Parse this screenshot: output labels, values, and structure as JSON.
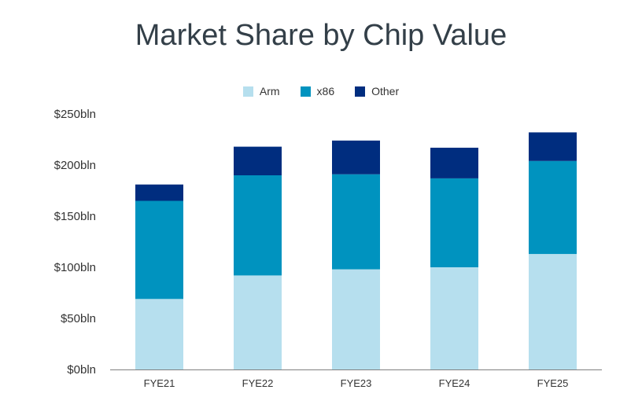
{
  "chart_data": {
    "type": "bar",
    "stacked": true,
    "title": "Market Share by Chip Value",
    "xlabel": "",
    "ylabel": "",
    "categories": [
      "FYE21",
      "FYE22",
      "FYE23",
      "FYE24",
      "FYE25"
    ],
    "series": [
      {
        "name": "Arm",
        "color": "#b6dfee",
        "values": [
          69,
          92,
          98,
          100,
          113
        ]
      },
      {
        "name": "x86",
        "color": "#0093bf",
        "values": [
          96,
          98,
          93,
          87,
          91
        ]
      },
      {
        "name": "Other",
        "color": "#002d7f",
        "values": [
          16,
          28,
          33,
          30,
          28
        ]
      }
    ],
    "ylim": [
      0,
      250
    ],
    "yticks": [
      0,
      50,
      100,
      150,
      200,
      250
    ],
    "ytick_labels": [
      "$0bln",
      "$50bln",
      "$100bln",
      "$150bln",
      "$200bln",
      "$250bln"
    ],
    "legend_position": "top-center",
    "grid": false
  }
}
